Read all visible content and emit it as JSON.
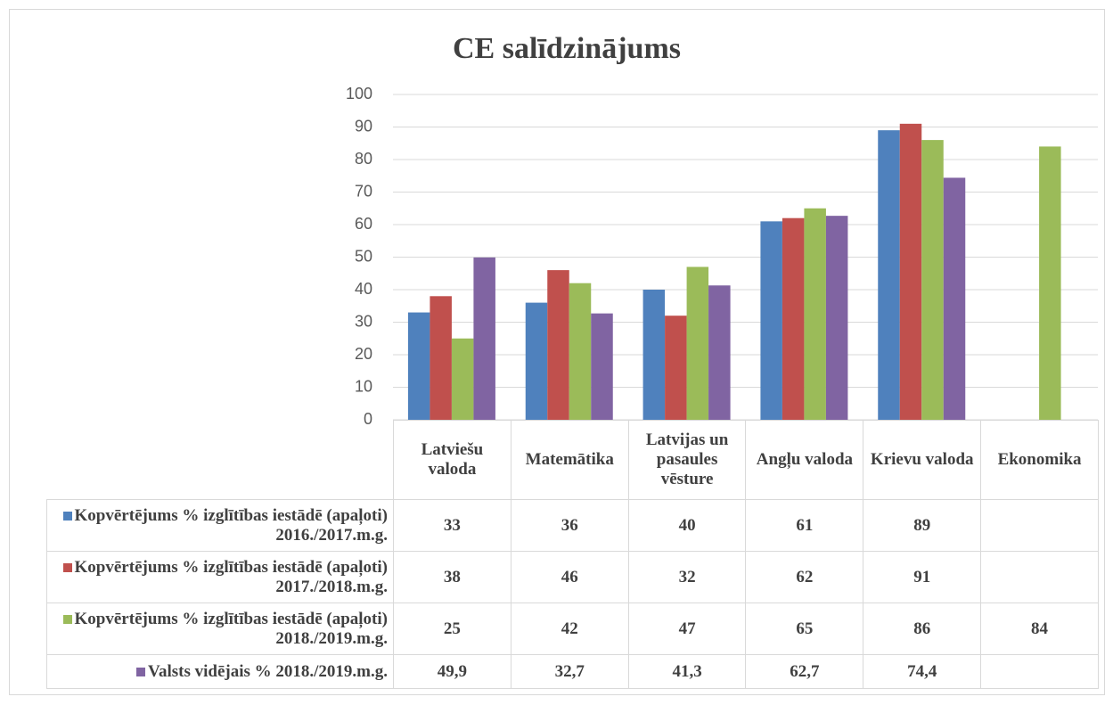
{
  "chart_data": {
    "type": "bar",
    "title": "CE salīdzinājums",
    "categories": [
      "Latviešu valoda",
      "Matemātika",
      "Latvijas un pasaules vēsture",
      "Angļu valoda",
      "Krievu valoda",
      "Ekonomika"
    ],
    "series": [
      {
        "name": "Kopvērtējums %  izglītības iestādē (apaļoti) 2016./2017.m.g.",
        "color": "#4f81bd",
        "values": [
          33,
          36,
          40,
          61,
          89,
          null
        ]
      },
      {
        "name": "Kopvērtējums %  izglītības iestādē (apaļoti) 2017./2018.m.g.",
        "color": "#c0504d",
        "values": [
          38,
          46,
          32,
          62,
          91,
          null
        ]
      },
      {
        "name": "Kopvērtējums %  izglītības iestādē (apaļoti) 2018./2019.m.g.",
        "color": "#9bbb59",
        "values": [
          25,
          42,
          47,
          65,
          86,
          84
        ]
      },
      {
        "name": "Valsts vidējais % 2018./2019.m.g.",
        "color": "#8064a2",
        "values": [
          49.9,
          32.7,
          41.3,
          62.7,
          74.4,
          null
        ],
        "value_labels": [
          "49,9",
          "32,7",
          "41,3",
          "62,7",
          "74,4",
          null
        ]
      }
    ],
    "ylim": [
      0,
      100
    ],
    "yticks": [
      0,
      10,
      20,
      30,
      40,
      50,
      60,
      70,
      80,
      90,
      100
    ],
    "grid": true
  }
}
